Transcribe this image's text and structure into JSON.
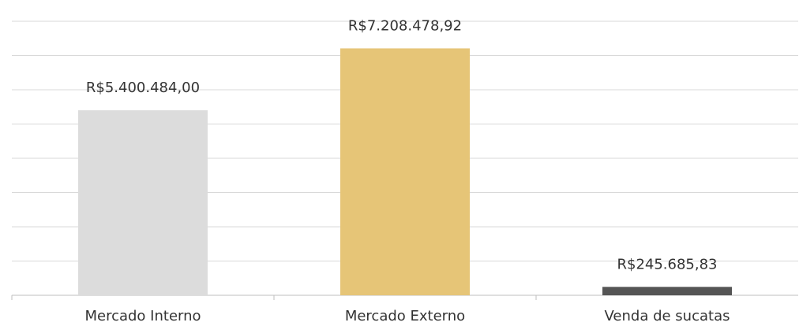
{
  "chart_data": {
    "type": "bar",
    "categories": [
      "Mercado Interno",
      "Mercado Externo",
      "Venda de sucatas"
    ],
    "series": [
      {
        "values": [
          5400484.0,
          7208478.92,
          245685.83
        ],
        "value_labels": [
          "R$5.400.484,00",
          "R$7.208.478,92",
          "R$245.685,83"
        ],
        "colors": [
          "#dcdcdc",
          "#e6c577",
          "#555555"
        ]
      }
    ],
    "ylim": [
      0,
      8000000
    ],
    "yticks": [
      0,
      1000000,
      2000000,
      3000000,
      4000000,
      5000000,
      6000000,
      7000000,
      8000000
    ],
    "grid": true
  }
}
